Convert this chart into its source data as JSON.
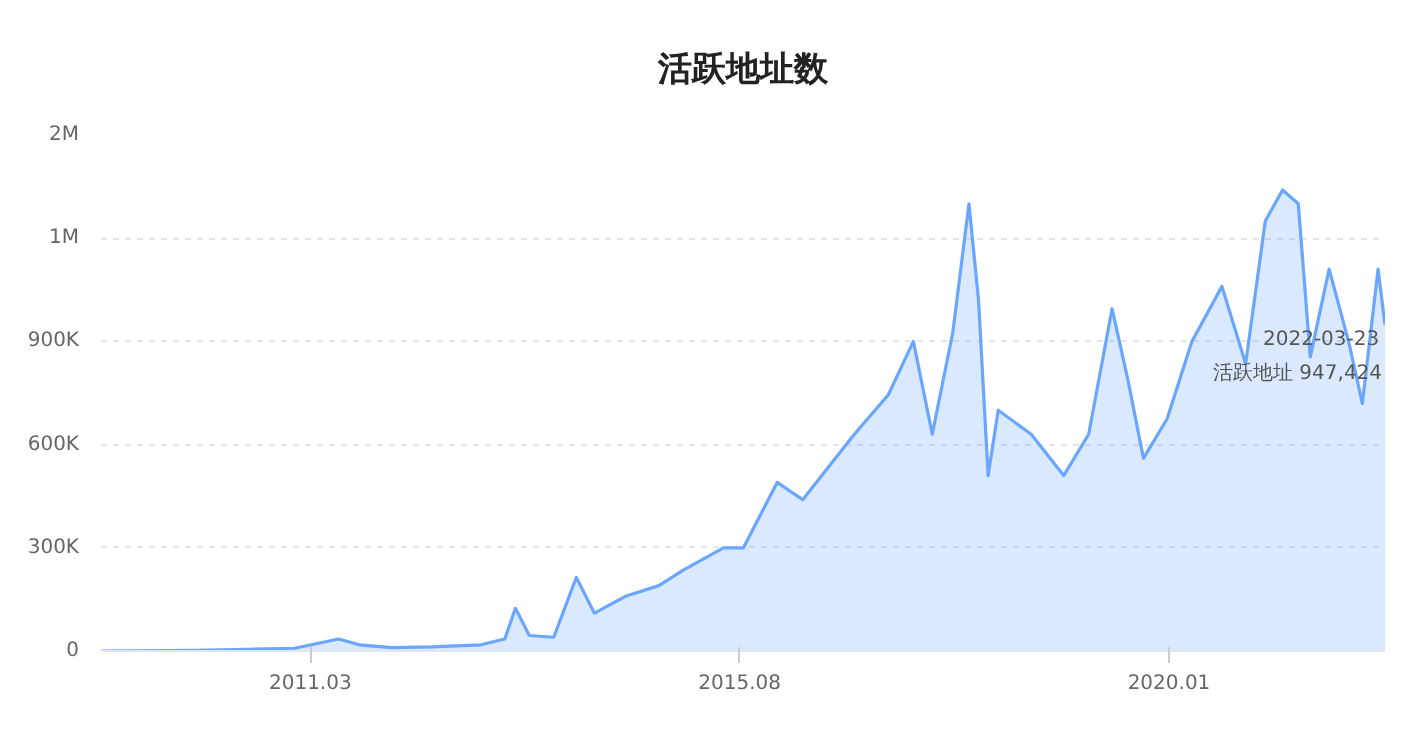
{
  "chart_data": {
    "type": "area",
    "title": "活跃地址数",
    "color": "#6aa6fd",
    "x": [
      "2009-01-03",
      "2010-01-01",
      "2010-07-01",
      "2011-01-01",
      "2011-06-15",
      "2011-09-01",
      "2012-01-01",
      "2012-06-01",
      "2012-12-01",
      "2013-03-01",
      "2013-04-10",
      "2013-06-01",
      "2013-09-01",
      "2013-11-25",
      "2014-02-01",
      "2014-06-01",
      "2014-10-01",
      "2015-01-01",
      "2015-06-01",
      "2015-08-15",
      "2015-12-20",
      "2016-03-25",
      "2016-10-05",
      "2017-02-10",
      "2017-05-15",
      "2017-07-25",
      "2017-10-10",
      "2017-12-10",
      "2018-01-15",
      "2018-02-20",
      "2018-03-30",
      "2018-08-01",
      "2018-12-01",
      "2019-03-05",
      "2019-06-01",
      "2019-07-30",
      "2019-09-27",
      "2019-12-25",
      "2020-03-27",
      "2020-07-18",
      "2020-10-15",
      "2020-12-28",
      "2021-03-03",
      "2021-05-01",
      "2021-06-15",
      "2021-08-25",
      "2021-11-06",
      "2021-12-28",
      "2022-02-25",
      "2022-03-23"
    ],
    "values": [
      0,
      2000,
      5000,
      8000,
      35000,
      18000,
      10000,
      12000,
      18000,
      35000,
      124000,
      45000,
      40000,
      214000,
      110000,
      160000,
      190000,
      235000,
      300000,
      300000,
      490000,
      440000,
      630000,
      745000,
      900000,
      630000,
      925000,
      1300000,
      1020000,
      510000,
      700000,
      630000,
      510000,
      630000,
      995000,
      790000,
      560000,
      675000,
      900000,
      1060000,
      835000,
      1250000,
      1340000,
      1300000,
      855000,
      1110000,
      900000,
      720000,
      1110000,
      947424
    ],
    "xlim": [
      "2009-01-03",
      "2022-03-23"
    ],
    "xticks": [
      {
        "value": "2011-03",
        "label": "2011.03"
      },
      {
        "value": "2015-08",
        "label": "2015.08"
      },
      {
        "value": "2020-01",
        "label": "2020.01"
      }
    ],
    "ylim": [
      0,
      1500000
    ],
    "yticks": [
      {
        "value": 0,
        "label": "0"
      },
      {
        "value": 300000,
        "label": "300K"
      },
      {
        "value": 600000,
        "label": "600K"
      },
      {
        "value": 900000,
        "label": "900K"
      },
      {
        "value": 1200000,
        "label": "1M"
      },
      {
        "value": 1500000,
        "label": "2M"
      }
    ],
    "grid": "y",
    "annotations": [
      "2022-03-23",
      "活跃地址 947,424"
    ]
  }
}
